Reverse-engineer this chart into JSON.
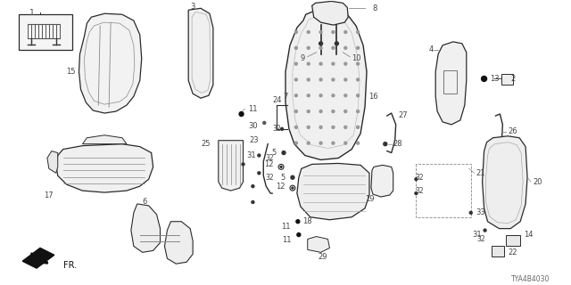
{
  "bg_color": "#ffffff",
  "line_color": "#2a2a2a",
  "diagram_id": "TYA4B4030",
  "label_fontsize": 6.0,
  "label_color": "#444444",
  "fig_w": 6.4,
  "fig_h": 3.2,
  "dpi": 100
}
